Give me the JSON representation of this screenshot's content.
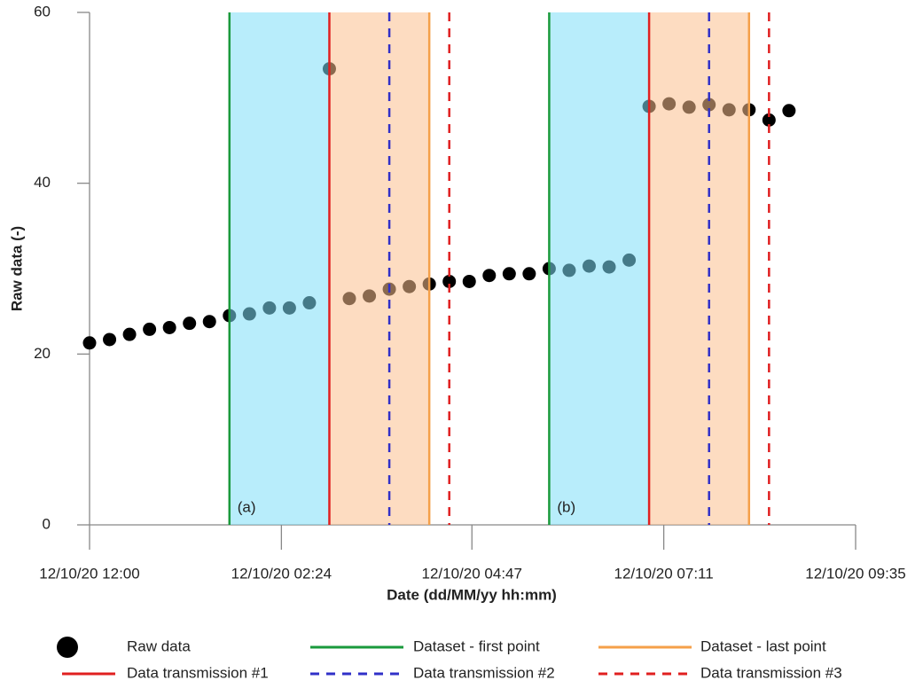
{
  "chart_data": {
    "type": "scatter",
    "xlabel": "Date (dd/MM/yy hh:mm)",
    "ylabel": "Raw data (-)",
    "xlim": [
      0,
      575
    ],
    "xticks": [
      {
        "value": 0,
        "label": "12/10/20 12:00"
      },
      {
        "value": 144,
        "label": "12/10/20 02:24"
      },
      {
        "value": 287,
        "label": "12/10/20 04:47"
      },
      {
        "value": 431,
        "label": "12/10/20 07:11"
      },
      {
        "value": 575,
        "label": "12/10/20 09:35"
      }
    ],
    "ylim": [
      0,
      60
    ],
    "yticks": [
      0,
      20,
      40,
      60
    ],
    "x": [
      0,
      15,
      30,
      45,
      60,
      75,
      90,
      105,
      120,
      135,
      150,
      165,
      180,
      195,
      210,
      225,
      240,
      255,
      270,
      285,
      300,
      315,
      330,
      345,
      360,
      375,
      390,
      405,
      420,
      435,
      450,
      465,
      480,
      495,
      510,
      525
    ],
    "series": [
      {
        "name": "Raw data",
        "color": "#000000",
        "values": [
          21.3,
          21.7,
          22.3,
          22.9,
          23.1,
          23.6,
          23.8,
          24.5,
          24.7,
          25.4,
          25.4,
          26.0,
          53.4,
          26.5,
          26.8,
          27.6,
          27.9,
          28.2,
          28.5,
          28.5,
          29.2,
          29.4,
          29.4,
          30.0,
          29.8,
          30.3,
          30.2,
          31.0,
          49.0,
          49.3,
          48.9,
          49.2,
          48.6,
          48.6,
          47.4,
          48.5
        ]
      }
    ],
    "vlines": [
      {
        "name": "Dataset - first point",
        "color": "#1a9a3c",
        "dashed": false,
        "values": [
          105,
          345
        ]
      },
      {
        "name": "Dataset - last point",
        "color": "#f5a04a",
        "dashed": false,
        "values": [
          255,
          495
        ]
      },
      {
        "name": "Data transmission #1",
        "color": "#e02020",
        "dashed": false,
        "values": [
          180,
          420
        ]
      },
      {
        "name": "Data transmission #2",
        "color": "#3030c8",
        "dashed": true,
        "values": [
          225,
          465
        ]
      },
      {
        "name": "Data transmission #3",
        "color": "#e02020",
        "dashed": true,
        "values": [
          270,
          510
        ]
      }
    ],
    "regions": [
      {
        "color": "#7ddff8",
        "start": [
          105,
          345
        ],
        "end": [
          180,
          420
        ]
      },
      {
        "color": "#fbc08e",
        "start": [
          180,
          420
        ],
        "end": [
          255,
          495
        ]
      }
    ],
    "annotations": [
      "(a)",
      "(b)"
    ]
  }
}
